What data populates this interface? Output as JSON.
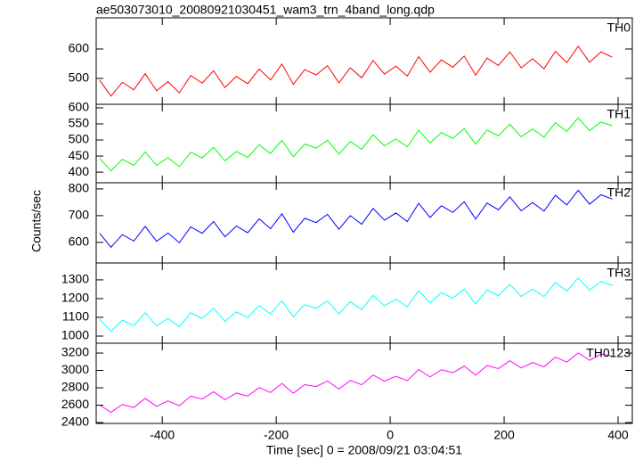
{
  "figure": {
    "title": "ae503073010_20080921030451_wam3_trn_4band_long.qdp",
    "ylabel": "Counts/sec",
    "xlabel": "Time [sec] 0 = 2008/09/21 03:04:51"
  },
  "chart_data": [
    {
      "type": "line",
      "x": [
        -510,
        -490,
        -470,
        -450,
        -430,
        -410,
        -390,
        -370,
        -350,
        -330,
        -310,
        -290,
        -270,
        -250,
        -230,
        -210,
        -190,
        -170,
        -150,
        -130,
        -110,
        -90,
        -70,
        -50,
        -30,
        -10,
        10,
        30,
        50,
        70,
        90,
        110,
        130,
        150,
        170,
        190,
        210,
        230,
        250,
        270,
        290,
        310,
        330,
        350,
        370,
        390
      ],
      "series": [
        {
          "name": "TH0",
          "color": "#ff0000",
          "values": [
            494,
            440,
            487,
            461,
            516,
            458,
            489,
            451,
            510,
            484,
            526,
            469,
            507,
            482,
            532,
            495,
            549,
            480,
            530,
            512,
            543,
            485,
            536,
            502,
            561,
            515,
            542,
            508,
            574,
            521,
            563,
            538,
            576,
            511,
            569,
            544,
            590,
            536,
            567,
            533,
            592,
            554,
            609,
            555,
            590,
            572
          ]
        }
      ],
      "xlim": [
        -516,
        425
      ],
      "xticks": [
        -400,
        -200,
        0,
        200,
        400
      ],
      "ylim": [
        412,
        706
      ],
      "yticks": [
        500,
        600
      ]
    },
    {
      "type": "line",
      "x": [
        -510,
        -490,
        -470,
        -450,
        -430,
        -410,
        -390,
        -370,
        -350,
        -330,
        -310,
        -290,
        -270,
        -250,
        -230,
        -210,
        -190,
        -170,
        -150,
        -130,
        -110,
        -90,
        -70,
        -50,
        -30,
        -10,
        10,
        30,
        50,
        70,
        90,
        110,
        130,
        150,
        170,
        190,
        210,
        230,
        250,
        270,
        290,
        310,
        330,
        350,
        370,
        390
      ],
      "series": [
        {
          "name": "TH1",
          "color": "#00ff00",
          "values": [
            443,
            404,
            440,
            421,
            463,
            421,
            445,
            417,
            462,
            444,
            477,
            435,
            464,
            446,
            485,
            458,
            499,
            448,
            487,
            475,
            499,
            456,
            495,
            471,
            516,
            482,
            503,
            479,
            530,
            491,
            523,
            505,
            535,
            487,
            531,
            513,
            549,
            510,
            534,
            509,
            554,
            527,
            569,
            529,
            556,
            544
          ]
        }
      ],
      "xlim": [
        -516,
        425
      ],
      "xticks": [
        -400,
        -200,
        0,
        200,
        400
      ],
      "ylim": [
        367,
        611
      ],
      "yticks": [
        400,
        450,
        500,
        550,
        600
      ]
    },
    {
      "type": "line",
      "x": [
        -510,
        -490,
        -470,
        -450,
        -430,
        -410,
        -390,
        -370,
        -350,
        -330,
        -310,
        -290,
        -270,
        -250,
        -230,
        -210,
        -190,
        -170,
        -150,
        -130,
        -110,
        -90,
        -70,
        -50,
        -30,
        -10,
        10,
        30,
        50,
        70,
        90,
        110,
        130,
        150,
        170,
        190,
        210,
        230,
        250,
        270,
        290,
        310,
        330,
        350,
        370,
        390
      ],
      "series": [
        {
          "name": "TH2",
          "color": "#0000ff",
          "values": [
            634,
            582,
            629,
            605,
            660,
            604,
            635,
            599,
            658,
            634,
            678,
            621,
            661,
            636,
            688,
            651,
            707,
            638,
            690,
            674,
            705,
            649,
            700,
            668,
            727,
            683,
            710,
            678,
            746,
            693,
            737,
            712,
            752,
            687,
            747,
            722,
            770,
            718,
            749,
            717,
            776,
            740,
            795,
            743,
            778,
            762
          ]
        }
      ],
      "xlim": [
        -516,
        425
      ],
      "xticks": [
        -400,
        -200,
        0,
        200,
        400
      ],
      "ylim": [
        523,
        823
      ],
      "yticks": [
        600,
        700,
        800
      ]
    },
    {
      "type": "line",
      "x": [
        -510,
        -490,
        -470,
        -450,
        -430,
        -410,
        -390,
        -370,
        -350,
        -330,
        -310,
        -290,
        -270,
        -250,
        -230,
        -210,
        -190,
        -170,
        -150,
        -130,
        -110,
        -90,
        -70,
        -50,
        -30,
        -10,
        10,
        30,
        50,
        70,
        90,
        110,
        130,
        150,
        170,
        190,
        210,
        230,
        250,
        270,
        290,
        310,
        330,
        350,
        370,
        390
      ],
      "series": [
        {
          "name": "TH3",
          "color": "#00ffff",
          "values": [
            1090,
            1025,
            1085,
            1055,
            1125,
            1054,
            1094,
            1049,
            1124,
            1094,
            1149,
            1079,
            1129,
            1099,
            1163,
            1118,
            1188,
            1103,
            1168,
            1148,
            1188,
            1118,
            1183,
            1142,
            1217,
            1162,
            1197,
            1157,
            1242,
            1177,
            1232,
            1202,
            1251,
            1171,
            1246,
            1216,
            1276,
            1211,
            1251,
            1211,
            1286,
            1240,
            1310,
            1245,
            1290,
            1270
          ]
        }
      ],
      "xlim": [
        -516,
        425
      ],
      "xticks": [
        -400,
        -200,
        0,
        200,
        400
      ],
      "ylim": [
        962,
        1390
      ],
      "yticks": [
        1000,
        1100,
        1200,
        1300
      ]
    },
    {
      "type": "line",
      "x": [
        -510,
        -490,
        -470,
        -450,
        -430,
        -410,
        -390,
        -370,
        -350,
        -330,
        -310,
        -290,
        -270,
        -250,
        -230,
        -210,
        -190,
        -170,
        -150,
        -130,
        -110,
        -90,
        -70,
        -50,
        -30,
        -10,
        10,
        30,
        50,
        70,
        90,
        110,
        130,
        150,
        170,
        190,
        210,
        230,
        250,
        270,
        290,
        310,
        330,
        350,
        370,
        390
      ],
      "series": [
        {
          "name": "TH0123",
          "color": "#ff00ff",
          "values": [
            2602,
            2518,
            2609,
            2573,
            2678,
            2587,
            2650,
            2593,
            2705,
            2670,
            2754,
            2663,
            2739,
            2704,
            2802,
            2746,
            2850,
            2738,
            2836,
            2815,
            2878,
            2786,
            2884,
            2835,
            2947,
            2876,
            2932,
            2883,
            3009,
            2925,
            3008,
            2973,
            3050,
            2945,
            3056,
            3021,
            3112,
            3028,
            3091,
            3041,
            3153,
            3097,
            3202,
            3117,
            3187,
            3166
          ]
        }
      ],
      "xlim": [
        -516,
        425
      ],
      "xticks": [
        -400,
        -200,
        0,
        200,
        400
      ],
      "ylim": [
        2390,
        3313
      ],
      "yticks": [
        2400,
        2600,
        2800,
        3000,
        3200
      ]
    }
  ]
}
